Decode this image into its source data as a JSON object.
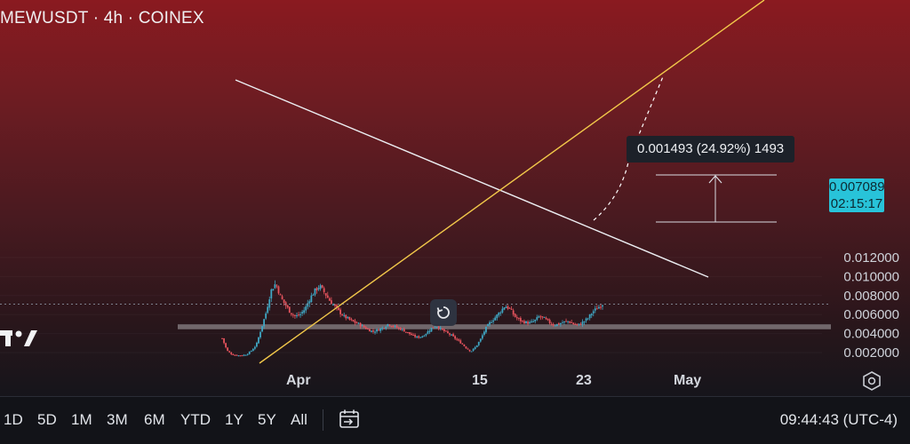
{
  "header": {
    "title": "MEWUSDT · 4h · COINEX"
  },
  "price": {
    "current": "0.007089",
    "countdown": "02:15:17"
  },
  "measure": {
    "label": "0.001493 (24.92%) 1493"
  },
  "chart_data": {
    "type": "candlestick",
    "symbol": "MEWUSDT",
    "interval": "4h",
    "exchange": "COINEX",
    "ylim": [
      0.0015,
      0.0128
    ],
    "y_ticks": [
      "0.012000",
      "0.010000",
      "0.008000",
      "0.006000",
      "0.004000",
      "0.002000"
    ],
    "x_ticks": [
      "Apr",
      "15",
      "23",
      "May"
    ],
    "close_path": [
      0.0035,
      0.0022,
      0.0018,
      0.0017,
      0.0017,
      0.0018,
      0.0022,
      0.0028,
      0.0045,
      0.0062,
      0.0085,
      0.0093,
      0.0078,
      0.007,
      0.0062,
      0.0058,
      0.006,
      0.0066,
      0.0077,
      0.0085,
      0.009,
      0.0083,
      0.0075,
      0.0069,
      0.0063,
      0.0058,
      0.0055,
      0.0052,
      0.005,
      0.0047,
      0.0044,
      0.0042,
      0.0044,
      0.0046,
      0.005,
      0.0048,
      0.0046,
      0.0044,
      0.0041,
      0.0038,
      0.0036,
      0.0037,
      0.0041,
      0.0046,
      0.0048,
      0.0044,
      0.0041,
      0.0038,
      0.0034,
      0.003,
      0.0025,
      0.0021,
      0.0026,
      0.0034,
      0.0045,
      0.0052,
      0.0057,
      0.0063,
      0.0069,
      0.0066,
      0.0058,
      0.0054,
      0.0052,
      0.0051,
      0.0053,
      0.0058,
      0.0056,
      0.0052,
      0.0049,
      0.005,
      0.0052,
      0.0053,
      0.005,
      0.0049,
      0.0052,
      0.0056,
      0.0063,
      0.0067,
      0.0071
    ],
    "current_price": 0.007089,
    "support_zone": [
      0.00445,
      0.00497
    ],
    "annotations": [
      "descending trendline",
      "ascending trendline",
      "measure 0.001493 (24.92%) 1493"
    ]
  },
  "xaxis": {
    "apr": "Apr",
    "d15": "15",
    "d23": "23",
    "may": "May"
  },
  "bottom": {
    "ranges": [
      "1D",
      "5D",
      "1M",
      "3M",
      "6M",
      "YTD",
      "1Y",
      "5Y",
      "All"
    ],
    "clock": "09:44:43 (UTC-4)"
  },
  "colors": {
    "up": "#3fa7c4",
    "down": "#e5535d",
    "price_tag": "#28c3d9",
    "trendline_up": "#f0c040",
    "trendline_down": "#e8eaee"
  }
}
